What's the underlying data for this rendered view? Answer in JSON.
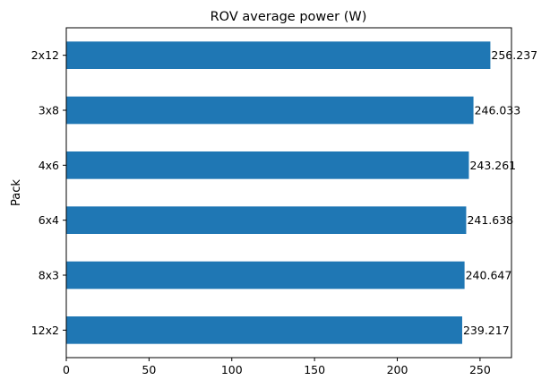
{
  "chart_data": {
    "type": "bar",
    "orientation": "horizontal",
    "title": "ROV average power (W)",
    "xlabel": "",
    "ylabel": "Pack",
    "categories": [
      "2x12",
      "3x8",
      "4x6",
      "6x4",
      "8x3",
      "12x2"
    ],
    "values": [
      256.237,
      246.033,
      243.261,
      241.638,
      240.647,
      239.217
    ],
    "data_labels": [
      "256.237",
      "246.033",
      "243.261",
      "241.638",
      "240.647",
      "239.217"
    ],
    "xlim": [
      0,
      269
    ],
    "xticks": [
      0,
      50,
      100,
      150,
      200,
      250
    ],
    "grid": false,
    "legend": "none",
    "bar_color": "#1f77b4"
  }
}
